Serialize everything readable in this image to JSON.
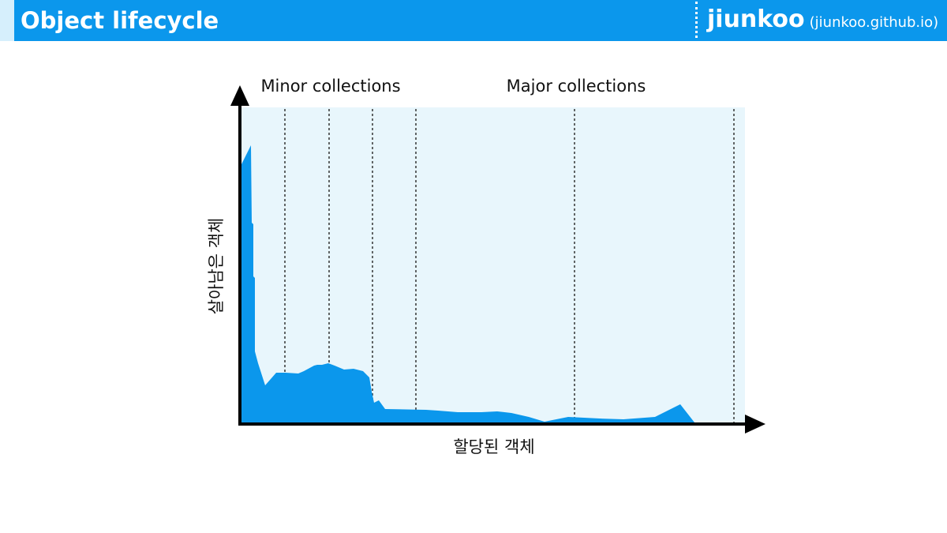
{
  "header": {
    "title": "Object lifecycle",
    "brand_name": "jiunkoo",
    "brand_url": "(jiunkoo.github.io)"
  },
  "diagram": {
    "minor_label": "Minor collections",
    "major_label": "Major collections",
    "y_axis_label": "살아남은 객체",
    "x_axis_label": "할당된 객체"
  },
  "colors": {
    "header": "#0b97ec",
    "header_accent": "#d6effc",
    "plot_background": "#e8f6fc",
    "area_fill": "#0b97ec",
    "axis": "#000000"
  }
}
